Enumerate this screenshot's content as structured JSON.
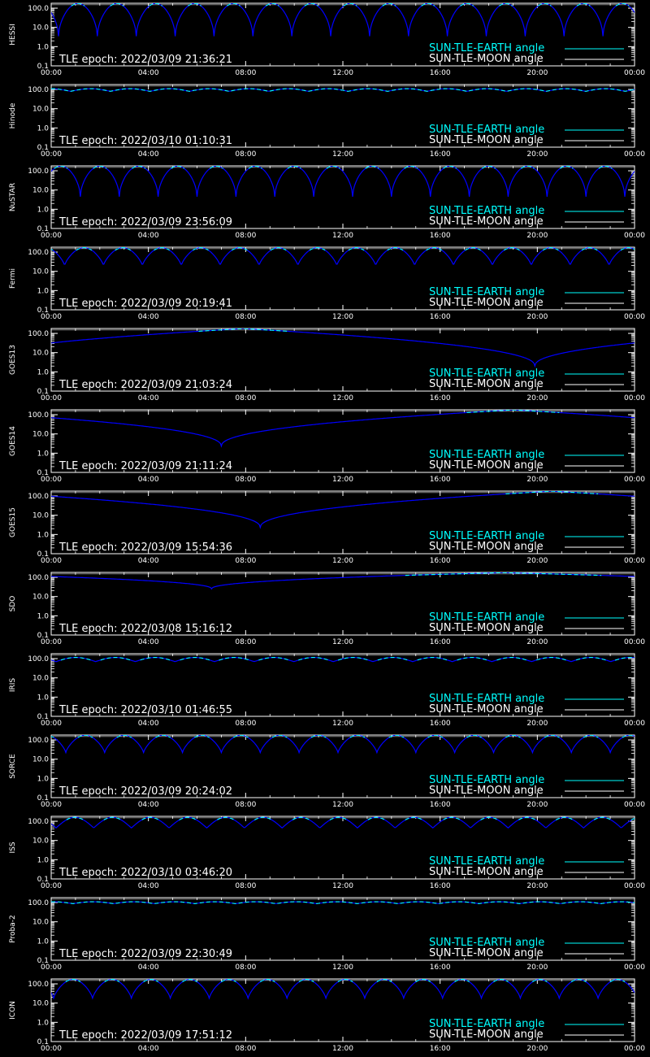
{
  "legend": {
    "earth_label": "SUN-TLE-EARTH angle",
    "moon_label": "SUN-TLE-MOON angle",
    "earth_color": "#00ffff",
    "moon_color": "#ffffff"
  },
  "colors": {
    "background": "#000000",
    "axes": "#ffffff",
    "curve_main": "#0000ff",
    "curve_highlight": "#00ffff"
  },
  "axes": {
    "y_scale": "log",
    "y_ticks": [
      "100.0",
      "10.0",
      "1.0",
      "0.1"
    ],
    "x_ticks": [
      "00:00",
      "04:00",
      "08:00",
      "12:00",
      "16:00",
      "20:00",
      "00:00"
    ]
  },
  "chart_data": [
    {
      "type": "line",
      "satellite": "HESSI",
      "epoch": "TLE epoch: 2022/03/09 21:36:21",
      "y_scale": "log",
      "ylim": [
        0.1,
        180
      ],
      "x_unit": "hours",
      "xlim": [
        0,
        24
      ],
      "series": [
        {
          "kind": "periodic",
          "period_h": 1.6,
          "phase_h": 0.3,
          "min": 3.5,
          "max": 175
        }
      ]
    },
    {
      "type": "line",
      "satellite": "Hinode",
      "epoch": "TLE epoch: 2022/03/10 01:10:31",
      "y_scale": "log",
      "ylim": [
        0.1,
        180
      ],
      "x_unit": "hours",
      "xlim": [
        0,
        24
      ],
      "series": [
        {
          "kind": "periodic",
          "period_h": 1.63,
          "phase_h": 0.8,
          "min": 80,
          "max": 110
        }
      ]
    },
    {
      "type": "line",
      "satellite": "NuSTAR",
      "epoch": "TLE epoch: 2022/03/09 23:56:09",
      "y_scale": "log",
      "ylim": [
        0.1,
        180
      ],
      "x_unit": "hours",
      "xlim": [
        0,
        24
      ],
      "series": [
        {
          "kind": "periodic",
          "period_h": 1.6,
          "phase_h": 1.2,
          "min": 4.5,
          "max": 175
        }
      ]
    },
    {
      "type": "line",
      "satellite": "Fermi",
      "epoch": "TLE epoch: 2022/03/09 20:19:41",
      "y_scale": "log",
      "ylim": [
        0.1,
        180
      ],
      "x_unit": "hours",
      "xlim": [
        0,
        24
      ],
      "series": [
        {
          "kind": "periodic",
          "period_h": 1.6,
          "phase_h": 0.55,
          "min": 20,
          "max": 170
        }
      ]
    },
    {
      "type": "line",
      "satellite": "GOES13",
      "epoch": "TLE epoch: 2022/03/09 21:03:24",
      "y_scale": "log",
      "ylim": [
        0.1,
        180
      ],
      "x_unit": "hours",
      "xlim": [
        0,
        24
      ],
      "series": [
        {
          "kind": "dip",
          "min_time_h": 19.9,
          "min": 2.0,
          "max": 178
        }
      ]
    },
    {
      "type": "line",
      "satellite": "GOES14",
      "epoch": "TLE epoch: 2022/03/09 21:11:24",
      "y_scale": "log",
      "ylim": [
        0.1,
        180
      ],
      "x_unit": "hours",
      "xlim": [
        0,
        24
      ],
      "series": [
        {
          "kind": "dip",
          "min_time_h": 7.0,
          "min": 2.3,
          "max": 178
        }
      ]
    },
    {
      "type": "line",
      "satellite": "GOES15",
      "epoch": "TLE epoch: 2022/03/09 15:54:36",
      "y_scale": "log",
      "ylim": [
        0.1,
        180
      ],
      "x_unit": "hours",
      "xlim": [
        0,
        24
      ],
      "series": [
        {
          "kind": "dip",
          "min_time_h": 8.6,
          "min": 2.3,
          "max": 178
        }
      ]
    },
    {
      "type": "line",
      "satellite": "SDO",
      "epoch": "TLE epoch: 2022/03/08 15:16:12",
      "y_scale": "log",
      "ylim": [
        0.1,
        180
      ],
      "x_unit": "hours",
      "xlim": [
        0,
        24
      ],
      "series": [
        {
          "kind": "dip",
          "min_time_h": 6.6,
          "min": 25,
          "max": 175
        }
      ]
    },
    {
      "type": "line",
      "satellite": "IRIS",
      "epoch": "TLE epoch: 2022/03/10 01:46:55",
      "y_scale": "log",
      "ylim": [
        0.1,
        180
      ],
      "x_unit": "hours",
      "xlim": [
        0,
        24
      ],
      "series": [
        {
          "kind": "periodic",
          "period_h": 1.63,
          "phase_h": 0.2,
          "min": 70,
          "max": 115
        }
      ]
    },
    {
      "type": "line",
      "satellite": "SORCE",
      "epoch": "TLE epoch: 2022/03/09 20:24:02",
      "y_scale": "log",
      "ylim": [
        0.1,
        180
      ],
      "x_unit": "hours",
      "xlim": [
        0,
        24
      ],
      "series": [
        {
          "kind": "periodic",
          "period_h": 1.6,
          "phase_h": 0.6,
          "min": 22,
          "max": 175
        }
      ]
    },
    {
      "type": "line",
      "satellite": "ISS",
      "epoch": "TLE epoch: 2022/03/10 03:46:20",
      "y_scale": "log",
      "ylim": [
        0.1,
        180
      ],
      "x_unit": "hours",
      "xlim": [
        0,
        24
      ],
      "series": [
        {
          "kind": "periodic",
          "period_h": 1.55,
          "phase_h": 0.2,
          "min": 45,
          "max": 160
        }
      ]
    },
    {
      "type": "line",
      "satellite": "Proba-2",
      "epoch": "TLE epoch: 2022/03/09 22:30:49",
      "y_scale": "log",
      "ylim": [
        0.1,
        180
      ],
      "x_unit": "hours",
      "xlim": [
        0,
        24
      ],
      "series": [
        {
          "kind": "periodic",
          "period_h": 1.67,
          "phase_h": 0.9,
          "min": 88,
          "max": 110
        }
      ]
    },
    {
      "type": "line",
      "satellite": "ICON",
      "epoch": "TLE epoch: 2022/03/09 17:51:12",
      "y_scale": "log",
      "ylim": [
        0.1,
        180
      ],
      "x_unit": "hours",
      "xlim": [
        0,
        24
      ],
      "series": [
        {
          "kind": "periodic",
          "period_h": 1.6,
          "phase_h": 0.1,
          "min": 18,
          "max": 170
        }
      ]
    }
  ]
}
